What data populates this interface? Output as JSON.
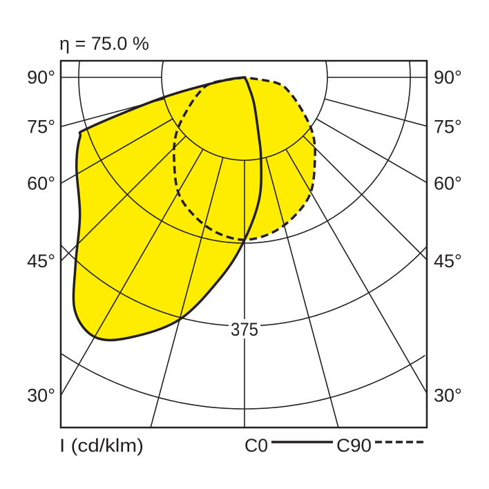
{
  "chart_data": {
    "type": "polar",
    "title": "η = 75.0 %",
    "unit_label": "I (cd/klm)",
    "ring_label": "375",
    "ring_values": [
      125,
      250,
      375,
      500
    ],
    "angle_ticks": [
      0,
      15,
      30,
      45,
      60,
      75,
      90
    ],
    "angle_labels_left": [
      "90°",
      "75°",
      "60°",
      "45°",
      "30°"
    ],
    "angle_labels_right": [
      "90°",
      "75°",
      "60°",
      "45°",
      "30°"
    ],
    "grid": true,
    "legend_placement": "bottom-right",
    "fill_color": "#ffed00",
    "line_color": "#231f20",
    "series": [
      {
        "name": "C0",
        "style": "solid",
        "points": [
          [
            -90,
            0
          ],
          [
            -81,
            35
          ],
          [
            -76,
            128
          ],
          [
            -72,
            248
          ],
          [
            -70,
            264
          ],
          [
            -62,
            287
          ],
          [
            -50,
            324
          ],
          [
            -42,
            381
          ],
          [
            -36,
            435
          ],
          [
            -30,
            452
          ],
          [
            -24,
            430
          ],
          [
            -15,
            378
          ],
          [
            -6.5,
            302
          ],
          [
            0,
            245
          ],
          [
            7,
            184
          ],
          [
            11.5,
            125
          ],
          [
            13.5,
            94
          ],
          [
            20,
            42
          ],
          [
            25,
            14
          ],
          [
            30,
            6
          ],
          [
            90,
            0
          ]
        ]
      },
      {
        "name": "C90",
        "style": "dashed",
        "points": [
          [
            -90,
            0
          ],
          [
            -80,
            50
          ],
          [
            -70,
            75
          ],
          [
            -58,
            107
          ],
          [
            -50,
            135
          ],
          [
            -41,
            162
          ],
          [
            -30,
            200
          ],
          [
            -20,
            222
          ],
          [
            -10,
            238
          ],
          [
            0,
            245
          ],
          [
            10,
            238
          ],
          [
            20,
            222
          ],
          [
            30,
            200
          ],
          [
            41,
            162
          ],
          [
            50,
            135
          ],
          [
            58,
            107
          ],
          [
            70,
            75
          ],
          [
            80,
            50
          ],
          [
            90,
            0
          ]
        ]
      }
    ]
  }
}
